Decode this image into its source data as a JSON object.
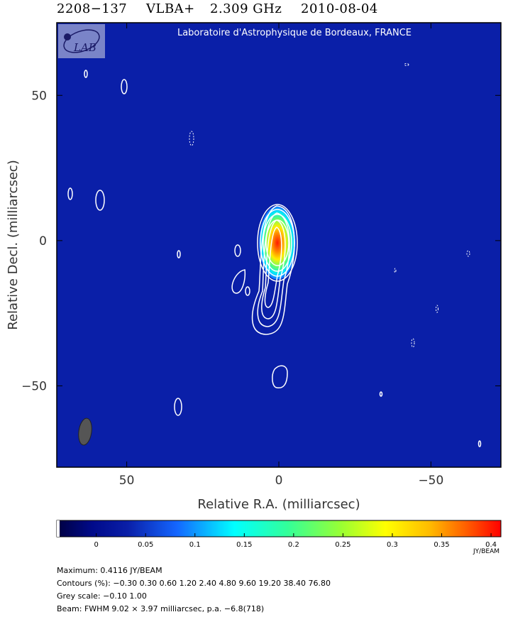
{
  "header": {
    "source": "2208−137",
    "array": "VLBA+",
    "frequency": "2.309 GHz",
    "date": "2010-08-04"
  },
  "banner": {
    "institution": "Laboratoire d'Astrophysique de Bordeaux, FRANCE",
    "logo_text": "LAB"
  },
  "colors": {
    "background": "#0a1fa8",
    "contour": "#ffffff",
    "beam": "#555555"
  },
  "chart_data": {
    "type": "heatmap",
    "xlabel": "Relative R.A. (milliarcsec)",
    "ylabel": "Relative Decl. (milliarcsec)",
    "xlim": [
      73,
      -73
    ],
    "ylim": [
      -78,
      75
    ],
    "x_ticks": [
      50,
      0,
      -50
    ],
    "x_tick_labels": [
      "50",
      "0",
      "−50"
    ],
    "y_ticks": [
      50,
      0,
      -50
    ],
    "y_tick_labels": [
      "50",
      "0",
      "−50"
    ],
    "colorbar": {
      "range": [
        -0.04,
        0.41
      ],
      "ticks": [
        0,
        0.05,
        0.1,
        0.15,
        0.2,
        0.25,
        0.3,
        0.35,
        0.4
      ],
      "tick_labels": [
        "0",
        "0.05",
        "0.1",
        "0.15",
        "0.2",
        "0.25",
        "0.3",
        "0.35",
        "0.4"
      ],
      "unit": "JY/BEAM"
    },
    "peak": {
      "x": 0,
      "y": 0,
      "value": 0.4116
    },
    "beam_position": {
      "x": 65,
      "y": -64
    }
  },
  "footer": {
    "maximum": "Maximum: 0.4116 JY/BEAM",
    "contours": "Contours (%): −0.30 0.30 0.60 1.20 2.40 4.80 9.60 19.20 38.40 76.80",
    "grey_scale": "Grey scale: −0.10 1.00",
    "beam": "Beam: FWHM 9.02 × 3.97 milliarcsec, p.a. −6.8(718)"
  }
}
